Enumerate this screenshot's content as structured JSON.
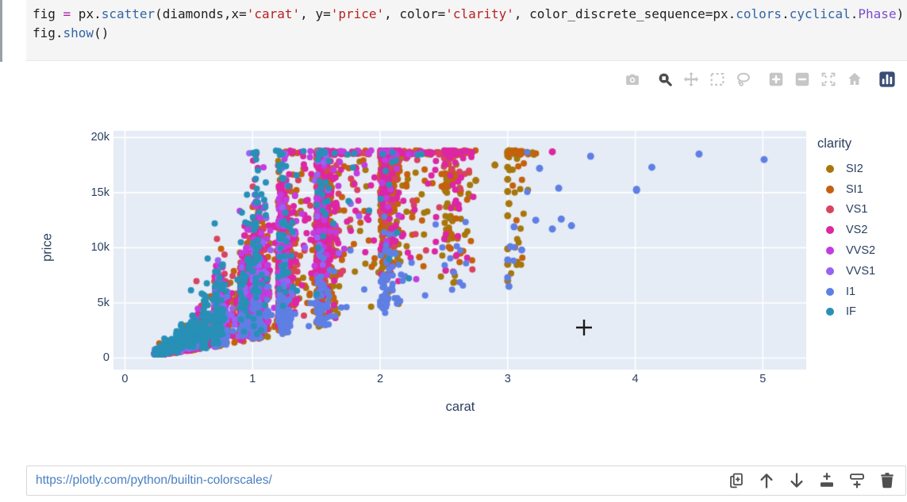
{
  "code_cell": {
    "lines": [
      {
        "tokens": [
          {
            "text": "fig ",
            "type": "plain"
          },
          {
            "text": "=",
            "type": "operator"
          },
          {
            "text": " px.",
            "type": "plain"
          },
          {
            "text": "scatter",
            "type": "function"
          },
          {
            "text": "(diamonds,x=",
            "type": "plain"
          },
          {
            "text": "'carat'",
            "type": "string"
          },
          {
            "text": ", y=",
            "type": "plain"
          },
          {
            "text": "'price'",
            "type": "string"
          },
          {
            "text": ", color=",
            "type": "plain"
          },
          {
            "text": "'clarity'",
            "type": "string"
          },
          {
            "text": ", color_discrete_sequence=px.",
            "type": "plain"
          },
          {
            "text": "colors",
            "type": "function"
          },
          {
            "text": ".",
            "type": "plain"
          },
          {
            "text": "cyclical",
            "type": "function"
          },
          {
            "text": ".",
            "type": "plain"
          },
          {
            "text": "Phase",
            "type": "class"
          },
          {
            "text": ")",
            "type": "plain"
          }
        ]
      },
      {
        "tokens": [
          {
            "text": "fig.",
            "type": "plain"
          },
          {
            "text": "show",
            "type": "function"
          },
          {
            "text": "()",
            "type": "plain"
          }
        ]
      }
    ]
  },
  "modebar": {
    "groups": [
      [
        "camera"
      ],
      [
        "zoom",
        "pan",
        "box-select",
        "lasso-select"
      ],
      [
        "zoom-in",
        "zoom-out",
        "autoscale",
        "reset-axes-home"
      ],
      [
        "plotly-logo"
      ]
    ],
    "active_tool": "zoom",
    "logo_color": "#3b4d74"
  },
  "chart_data": {
    "type": "scatter",
    "title": "",
    "xlabel": "carat",
    "ylabel": "price",
    "legend_title": "clarity",
    "legend_position": "right",
    "grid": "on",
    "plot_bg": "#e5ecf6",
    "grid_color": "#ffffff",
    "tick_color": "#2a3f5f",
    "x_ticks": [
      "0",
      "1",
      "2",
      "3",
      "4",
      "5"
    ],
    "x_tick_values": [
      0,
      1,
      2,
      3,
      4,
      5
    ],
    "y_ticks": [
      "0",
      "5k",
      "10k",
      "15k",
      "20k"
    ],
    "y_tick_values": [
      0,
      5000,
      10000,
      15000,
      20000
    ],
    "x_range": [
      -0.09,
      5.34
    ],
    "y_range": [
      -1046,
      20600
    ],
    "price_floor": 330,
    "price_cap": 18823,
    "marker_radius": 4,
    "series": [
      {
        "name": "SI2",
        "color": "#a7770c",
        "count": 1400,
        "price_at_1ct": 4300,
        "exponent": 1.9,
        "spread": 0.45,
        "carat_clusters": [
          [
            0.24,
            2
          ],
          [
            0.3,
            4
          ],
          [
            0.4,
            5
          ],
          [
            0.5,
            8
          ],
          [
            0.7,
            10
          ],
          [
            0.9,
            6
          ],
          [
            1.0,
            14
          ],
          [
            1.2,
            10
          ],
          [
            1.5,
            12
          ],
          [
            2.0,
            12
          ],
          [
            2.5,
            5
          ],
          [
            3.0,
            3
          ]
        ],
        "outliers": [
          [
            3.0,
            18600
          ],
          [
            3.0,
            18700
          ],
          [
            3.01,
            18800
          ],
          [
            3.0,
            18350
          ],
          [
            3.01,
            18550
          ],
          [
            3.0,
            17300
          ],
          [
            3.0,
            16200
          ],
          [
            3.0,
            15100
          ],
          [
            3.01,
            14000
          ],
          [
            3.0,
            12900
          ],
          [
            3.0,
            9900
          ],
          [
            3.0,
            8500
          ],
          [
            3.0,
            7000
          ],
          [
            2.9,
            17500
          ],
          [
            2.75,
            16100
          ],
          [
            2.7,
            14700
          ],
          [
            2.66,
            18700
          ],
          [
            2.55,
            15900
          ]
        ]
      },
      {
        "name": "SI1",
        "color": "#c5600c",
        "count": 1900,
        "price_at_1ct": 4600,
        "exponent": 1.95,
        "spread": 0.42,
        "carat_clusters": [
          [
            0.24,
            4
          ],
          [
            0.3,
            8
          ],
          [
            0.4,
            9
          ],
          [
            0.5,
            10
          ],
          [
            0.7,
            12
          ],
          [
            0.9,
            7
          ],
          [
            1.0,
            14
          ],
          [
            1.2,
            9
          ],
          [
            1.5,
            9
          ],
          [
            2.0,
            6
          ],
          [
            2.5,
            2
          ],
          [
            3.0,
            1
          ]
        ],
        "outliers": []
      },
      {
        "name": "VS1",
        "color": "#d94360",
        "count": 1200,
        "price_at_1ct": 5600,
        "exponent": 2.0,
        "spread": 0.42,
        "carat_clusters": [
          [
            0.24,
            5
          ],
          [
            0.3,
            9
          ],
          [
            0.4,
            8
          ],
          [
            0.5,
            9
          ],
          [
            0.7,
            11
          ],
          [
            0.9,
            5
          ],
          [
            1.0,
            10
          ],
          [
            1.2,
            7
          ],
          [
            1.5,
            7
          ],
          [
            2.0,
            4
          ],
          [
            2.5,
            1
          ]
        ],
        "outliers": [
          [
            2.7,
            18600
          ]
        ]
      },
      {
        "name": "VS2",
        "color": "#dd26a3",
        "count": 1750,
        "price_at_1ct": 5300,
        "exponent": 2.0,
        "spread": 0.42,
        "carat_clusters": [
          [
            0.24,
            5
          ],
          [
            0.3,
            9
          ],
          [
            0.4,
            8
          ],
          [
            0.5,
            9
          ],
          [
            0.7,
            11
          ],
          [
            0.9,
            6
          ],
          [
            1.0,
            11
          ],
          [
            1.2,
            8
          ],
          [
            1.5,
            8
          ],
          [
            2.0,
            5
          ],
          [
            2.5,
            1.5
          ]
        ],
        "outliers": [
          [
            3.35,
            18700
          ]
        ]
      },
      {
        "name": "VVS2",
        "color": "#c43be0",
        "count": 760,
        "price_at_1ct": 6200,
        "exponent": 2.05,
        "spread": 0.4,
        "carat_clusters": [
          [
            0.24,
            6
          ],
          [
            0.3,
            12
          ],
          [
            0.4,
            10
          ],
          [
            0.5,
            9
          ],
          [
            0.7,
            9
          ],
          [
            0.9,
            4
          ],
          [
            1.0,
            7
          ],
          [
            1.2,
            4
          ],
          [
            1.5,
            3
          ],
          [
            2.0,
            1
          ]
        ],
        "outliers": []
      },
      {
        "name": "VVS1",
        "color": "#9961f4",
        "count": 550,
        "price_at_1ct": 6300,
        "exponent": 2.05,
        "spread": 0.4,
        "carat_clusters": [
          [
            0.24,
            7
          ],
          [
            0.3,
            14
          ],
          [
            0.4,
            11
          ],
          [
            0.5,
            9
          ],
          [
            0.7,
            8
          ],
          [
            0.9,
            3
          ],
          [
            1.0,
            5
          ],
          [
            1.2,
            3
          ],
          [
            1.5,
            2
          ]
        ],
        "outliers": []
      },
      {
        "name": "I1",
        "color": "#5f7fe4",
        "count": 430,
        "price_at_1ct": 3000,
        "exponent": 1.15,
        "spread": 0.3,
        "carat_clusters": [
          [
            0.5,
            3
          ],
          [
            0.7,
            5
          ],
          [
            0.9,
            3
          ],
          [
            1.0,
            8
          ],
          [
            1.2,
            6
          ],
          [
            1.5,
            6
          ],
          [
            2.0,
            5
          ],
          [
            2.5,
            1
          ],
          [
            3.0,
            0.5
          ]
        ],
        "outliers": [
          [
            3.0,
            7300
          ],
          [
            3.0,
            8900
          ],
          [
            3.01,
            6500
          ],
          [
            3.02,
            10100
          ],
          [
            3.05,
            11900
          ],
          [
            3.11,
            9800
          ],
          [
            3.22,
            12500
          ],
          [
            3.25,
            17200
          ],
          [
            3.35,
            11700
          ],
          [
            3.4,
            15400
          ],
          [
            3.42,
            12600
          ],
          [
            3.5,
            12000
          ],
          [
            3.65,
            18300
          ],
          [
            4.01,
            15200
          ],
          [
            4.01,
            15300
          ],
          [
            4.13,
            17300
          ],
          [
            4.5,
            18500
          ],
          [
            5.01,
            18000
          ]
        ]
      },
      {
        "name": "IF",
        "color": "#2890b7",
        "count": 700,
        "price_at_1ct": 8000,
        "exponent": 2.1,
        "spread": 0.45,
        "carat_clusters": [
          [
            0.24,
            7
          ],
          [
            0.3,
            16
          ],
          [
            0.4,
            12
          ],
          [
            0.5,
            10
          ],
          [
            0.6,
            6
          ],
          [
            0.7,
            8
          ],
          [
            0.9,
            3
          ],
          [
            1.0,
            6
          ],
          [
            1.2,
            4
          ],
          [
            1.5,
            2
          ],
          [
            2.0,
            0.6
          ]
        ],
        "outliers": []
      }
    ]
  },
  "bottom_cell": {
    "url": "https://plotly.com/python/builtin-colorscales/",
    "toolbar_icons": [
      "duplicate-cell",
      "move-cell-up",
      "move-cell-down",
      "insert-cell-above",
      "insert-cell-below",
      "delete-cell"
    ]
  }
}
